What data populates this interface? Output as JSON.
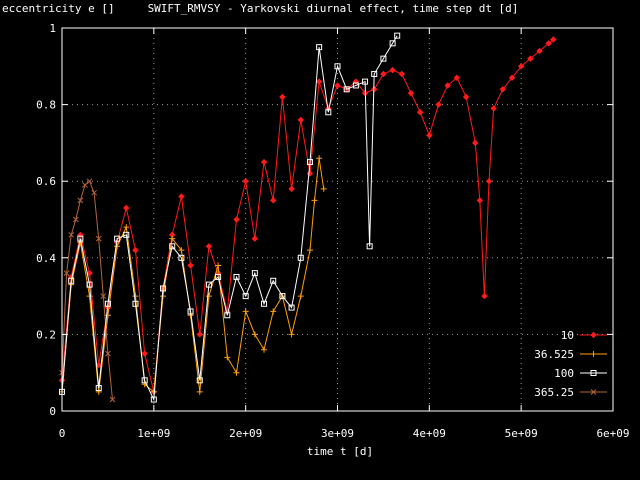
{
  "chart_data": {
    "type": "line",
    "title": "SWIFT_RMVSY - Yarkovski diurnal effect, time step dt [d]",
    "ylabel": "eccentricity e []",
    "xlabel": "time t [d]",
    "xlim": [
      0,
      6000000000
    ],
    "ylim": [
      0,
      1
    ],
    "x_ticks": [
      0,
      1000000000,
      2000000000,
      3000000000,
      4000000000,
      5000000000,
      6000000000
    ],
    "x_tick_labels": [
      "0",
      "1e+09",
      "2e+09",
      "3e+09",
      "4e+09",
      "5e+09",
      "6e+09"
    ],
    "y_ticks": [
      0,
      0.2,
      0.4,
      0.6,
      0.8,
      1
    ],
    "y_tick_labels": [
      "0",
      "0.2",
      "0.4",
      "0.6",
      "0.8",
      "1"
    ],
    "grid": true,
    "legend_position": "bottom-right",
    "series": [
      {
        "name": "10",
        "color": "#ff1a1a",
        "marker": "diamond",
        "x": [
          0,
          100000000,
          200000000,
          300000000,
          400000000,
          500000000,
          600000000,
          700000000,
          800000000,
          900000000,
          1000000000,
          1100000000,
          1200000000,
          1300000000,
          1400000000,
          1500000000,
          1600000000,
          1700000000,
          1800000000,
          1900000000,
          2000000000,
          2100000000,
          2200000000,
          2300000000,
          2400000000,
          2500000000,
          2600000000,
          2700000000,
          2800000000,
          2900000000,
          3000000000,
          3100000000,
          3200000000,
          3300000000,
          3400000000,
          3500000000,
          3600000000,
          3700000000,
          3800000000,
          3900000000,
          4000000000,
          4100000000,
          4200000000,
          4300000000,
          4400000000,
          4500000000,
          4550000000,
          4600000000,
          4650000000,
          4700000000,
          4800000000,
          4900000000,
          5000000000,
          5100000000,
          5200000000,
          5300000000,
          5350000000
        ],
        "y": [
          0.08,
          0.35,
          0.46,
          0.36,
          0.12,
          0.27,
          0.44,
          0.53,
          0.42,
          0.15,
          0.05,
          0.32,
          0.46,
          0.56,
          0.38,
          0.2,
          0.43,
          0.36,
          0.26,
          0.5,
          0.6,
          0.45,
          0.65,
          0.55,
          0.82,
          0.58,
          0.76,
          0.62,
          0.86,
          0.79,
          0.85,
          0.84,
          0.86,
          0.83,
          0.84,
          0.88,
          0.89,
          0.88,
          0.83,
          0.78,
          0.72,
          0.8,
          0.85,
          0.87,
          0.82,
          0.7,
          0.55,
          0.3,
          0.6,
          0.79,
          0.84,
          0.87,
          0.9,
          0.92,
          0.94,
          0.96,
          0.97
        ]
      },
      {
        "name": "36.525",
        "color": "#ffa000",
        "marker": "plus",
        "x": [
          0,
          100000000,
          200000000,
          300000000,
          400000000,
          500000000,
          600000000,
          700000000,
          800000000,
          900000000,
          1000000000,
          1100000000,
          1200000000,
          1300000000,
          1400000000,
          1500000000,
          1600000000,
          1700000000,
          1800000000,
          1900000000,
          2000000000,
          2100000000,
          2200000000,
          2300000000,
          2400000000,
          2500000000,
          2600000000,
          2700000000,
          2750000000,
          2800000000,
          2850000000
        ],
        "y": [
          0.05,
          0.33,
          0.44,
          0.3,
          0.05,
          0.25,
          0.43,
          0.48,
          0.3,
          0.07,
          0.05,
          0.3,
          0.45,
          0.42,
          0.25,
          0.05,
          0.3,
          0.38,
          0.14,
          0.1,
          0.26,
          0.2,
          0.16,
          0.26,
          0.3,
          0.2,
          0.3,
          0.42,
          0.55,
          0.66,
          0.58
        ]
      },
      {
        "name": "100",
        "color": "#ffffff",
        "marker": "square",
        "x": [
          0,
          100000000,
          200000000,
          300000000,
          400000000,
          500000000,
          600000000,
          700000000,
          800000000,
          900000000,
          1000000000,
          1100000000,
          1200000000,
          1300000000,
          1400000000,
          1500000000,
          1600000000,
          1700000000,
          1800000000,
          1900000000,
          2000000000,
          2100000000,
          2200000000,
          2300000000,
          2400000000,
          2500000000,
          2600000000,
          2700000000,
          2800000000,
          2900000000,
          3000000000,
          3100000000,
          3200000000,
          3300000000,
          3350000000,
          3400000000,
          3500000000,
          3600000000,
          3650000000
        ],
        "y": [
          0.05,
          0.34,
          0.45,
          0.33,
          0.06,
          0.28,
          0.45,
          0.46,
          0.28,
          0.08,
          0.03,
          0.32,
          0.43,
          0.4,
          0.26,
          0.08,
          0.33,
          0.35,
          0.25,
          0.35,
          0.3,
          0.36,
          0.28,
          0.34,
          0.3,
          0.27,
          0.4,
          0.65,
          0.95,
          0.78,
          0.9,
          0.84,
          0.85,
          0.86,
          0.43,
          0.88,
          0.92,
          0.96,
          0.98
        ]
      },
      {
        "name": "365.25",
        "color": "#b4643c",
        "marker": "cross",
        "x": [
          0,
          50000000,
          100000000,
          150000000,
          200000000,
          250000000,
          300000000,
          350000000,
          400000000,
          450000000,
          500000000,
          550000000
        ],
        "y": [
          0.1,
          0.36,
          0.46,
          0.5,
          0.55,
          0.59,
          0.6,
          0.57,
          0.45,
          0.3,
          0.15,
          0.03
        ]
      }
    ]
  }
}
